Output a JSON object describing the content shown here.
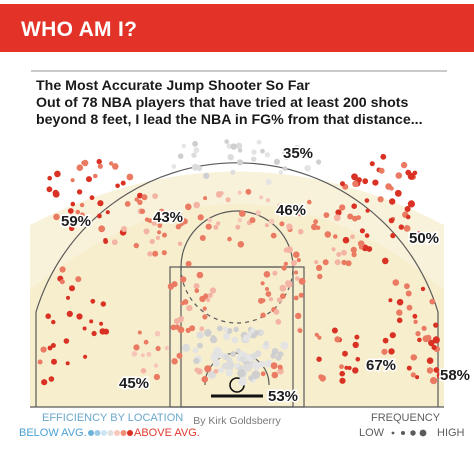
{
  "banner": {
    "title": "WHO AM I?"
  },
  "headline": {
    "line1": "The Most Accurate Jump Shooter So Far",
    "line2": "Out of 78 NBA players that have tried at least 200 shots",
    "line3": "beyond 8 feet, I lead the NBA in FG% from that distance..."
  },
  "credit": "By Kirk Goldsberry",
  "colors": {
    "banner": "#e33228",
    "court_fill": "#f8f1d6",
    "court_lines": "#5a5a5a",
    "below_avg": "#6bb3dc",
    "above_avg_light": "#f4b4a4",
    "above_avg": "#ea7a62",
    "above_avg_strong": "#d93123",
    "average": "#cfcfcf"
  },
  "chart_data": {
    "type": "scatter",
    "title": "The Most Accurate Jump Shooter So Far",
    "zones": [
      {
        "label": "35%",
        "value": 35
      },
      {
        "label": "59%",
        "value": 59
      },
      {
        "label": "43%",
        "value": 43
      },
      {
        "label": "46%",
        "value": 46
      },
      {
        "label": "50%",
        "value": 50
      },
      {
        "label": "45%",
        "value": 45
      },
      {
        "label": "67%",
        "value": 67
      },
      {
        "label": "53%",
        "value": 53
      },
      {
        "label": "58%",
        "value": 58
      }
    ],
    "legend": {
      "efficiency_title": "EFFICIENCY BY LOCATION",
      "below_label": "BELOW AVG.",
      "above_label": "ABOVE AVG.",
      "frequency_title": "FREQUENCY",
      "low_label": "LOW",
      "high_label": "HIGH"
    }
  }
}
